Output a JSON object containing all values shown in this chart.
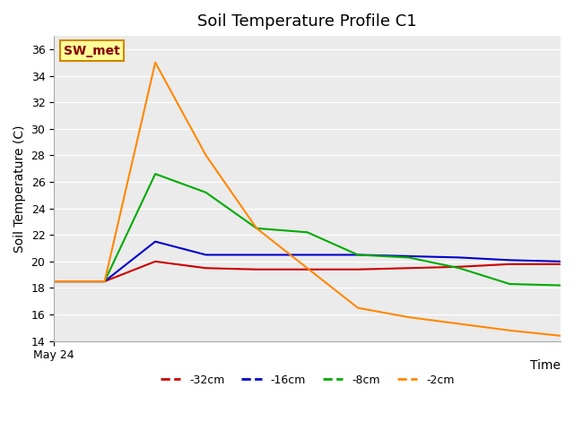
{
  "title": "Soil Temperature Profile C1",
  "xlabel": "Time",
  "ylabel": "Soil Temperature (C)",
  "ylim": [
    14,
    37
  ],
  "yticks": [
    14,
    16,
    18,
    20,
    22,
    24,
    26,
    28,
    30,
    32,
    34,
    36
  ],
  "xstart_label": "May 24",
  "legend_label": "SW_met",
  "background_color": "#e8e8e8",
  "plot_bg_color": "#ebebeb",
  "series": {
    "-32cm": {
      "color": "#cc0000",
      "x": [
        0,
        1,
        2,
        3,
        4,
        5,
        6,
        7,
        8,
        9,
        10
      ],
      "y": [
        18.5,
        18.5,
        20.0,
        19.5,
        19.4,
        19.4,
        19.4,
        19.5,
        19.6,
        19.8,
        19.8
      ]
    },
    "-16cm": {
      "color": "#0000cc",
      "x": [
        0,
        1,
        2,
        3,
        4,
        5,
        6,
        7,
        8,
        9,
        10
      ],
      "y": [
        18.5,
        18.5,
        21.5,
        20.5,
        20.5,
        20.5,
        20.5,
        20.4,
        20.3,
        20.1,
        20.0
      ]
    },
    "-8cm": {
      "color": "#00aa00",
      "x": [
        0,
        1,
        2,
        3,
        4,
        5,
        6,
        7,
        8,
        9,
        10
      ],
      "y": [
        18.5,
        18.5,
        26.6,
        25.2,
        22.5,
        22.2,
        20.5,
        20.3,
        19.5,
        18.3,
        18.2
      ]
    },
    "-2cm": {
      "color": "#ff8800",
      "x": [
        0,
        1,
        2,
        3,
        4,
        5,
        6,
        7,
        8,
        9,
        10
      ],
      "y": [
        18.5,
        18.5,
        35.0,
        28.0,
        22.5,
        19.5,
        16.5,
        15.8,
        15.3,
        14.8,
        14.4
      ]
    }
  },
  "legend_box_color": "#ffff99",
  "legend_box_edge": "#cc8800",
  "legend_text_color": "#880000",
  "title_fontsize": 13,
  "axis_label_fontsize": 10,
  "tick_fontsize": 9,
  "legend_fontsize": 9
}
